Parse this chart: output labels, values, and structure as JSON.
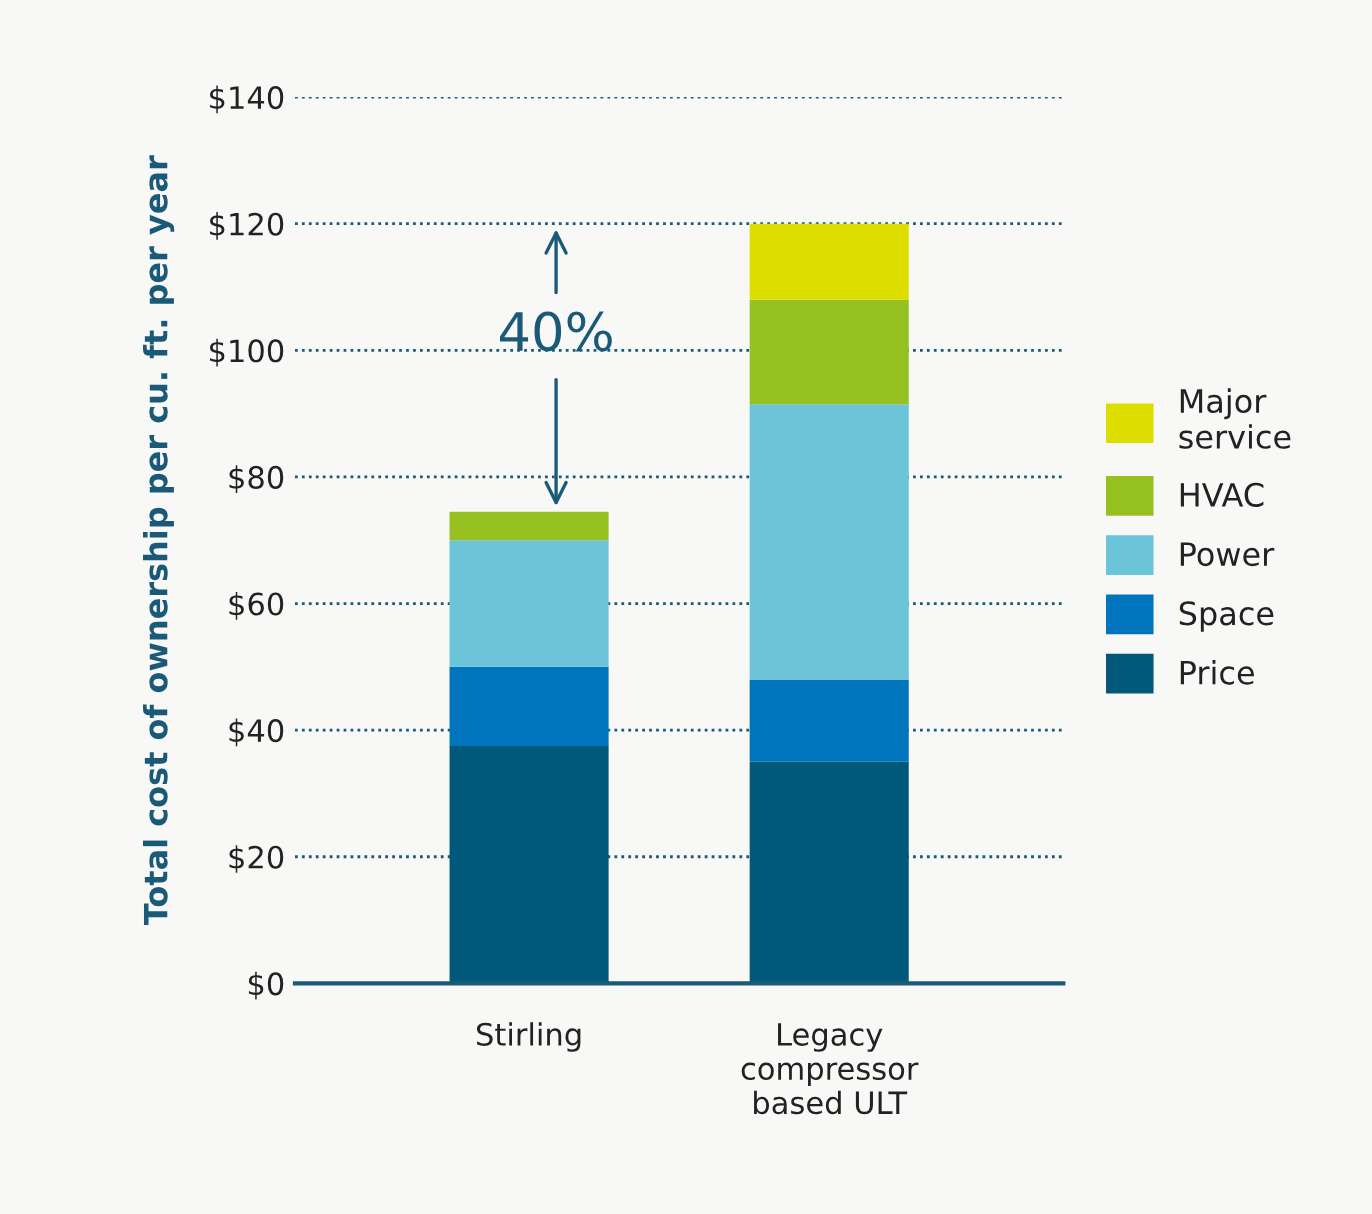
{
  "chart_data": {
    "type": "bar",
    "stacked": true,
    "ylabel": "Total cost of ownership per cu. ft. per year",
    "categories": [
      "Stirling",
      "Legacy\ncompressor\nbased ULT"
    ],
    "series": [
      {
        "name": "Price",
        "color": "#00587a",
        "values": [
          37.5,
          35
        ]
      },
      {
        "name": "Space",
        "color": "#0075bd",
        "values": [
          12.5,
          13
        ]
      },
      {
        "name": "Power",
        "color": "#6bc4d8",
        "values": [
          20,
          43.5
        ]
      },
      {
        "name": "HVAC",
        "color": "#96c121",
        "values": [
          4.5,
          16.5
        ]
      },
      {
        "name": "Major\nservice",
        "color": "#dddd00",
        "values": [
          0,
          12
        ]
      }
    ],
    "ylim": [
      0,
      140
    ],
    "yticks": [
      {
        "value": 0,
        "label": "$0"
      },
      {
        "value": 20,
        "label": "$20"
      },
      {
        "value": 40,
        "label": "$40"
      },
      {
        "value": 60,
        "label": "$60"
      },
      {
        "value": 80,
        "label": "$80"
      },
      {
        "value": 100,
        "label": "$100"
      },
      {
        "value": 120,
        "label": "$120"
      },
      {
        "value": 140,
        "label": "$140"
      }
    ],
    "grid": "y",
    "legend": "right",
    "annotations": [
      "40%"
    ]
  }
}
